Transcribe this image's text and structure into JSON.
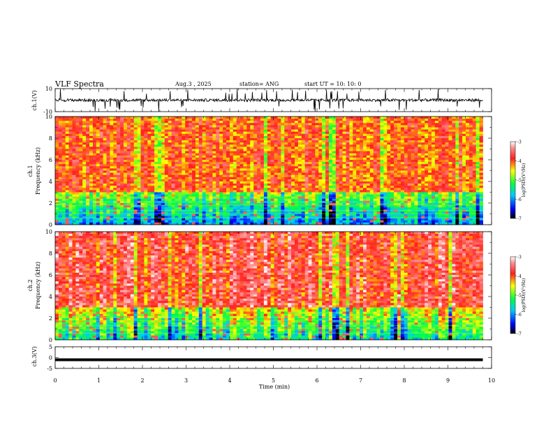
{
  "header": {
    "title": "VLF Spectra",
    "date": "Aug.3  , 2025",
    "station": "station= ANG",
    "start": "start  UT  =   10: 10: 0"
  },
  "chart_data": [
    {
      "type": "line",
      "panel": "ch1-waveform",
      "ylabel": "ch.1(V)",
      "ylim": [
        -10,
        10
      ],
      "yticks": [
        "10",
        "-10"
      ],
      "x_range_min": [
        0,
        9.8
      ],
      "baseline_v": 0,
      "description_values": "noisy signal around 0 V with spikes reaching about ±10 V"
    },
    {
      "type": "heatmap",
      "panel": "ch1-spectrogram",
      "ylabel_top": "ch.1",
      "ylabel": "Frequency  (kHz)",
      "ylim": [
        0,
        10
      ],
      "yticks": [
        "0",
        "2",
        "4",
        "6",
        "8",
        "10"
      ],
      "x_range_min": [
        0,
        9.8
      ],
      "colorbar": {
        "label": "log(PSD)(V²/Hz)",
        "range": [
          -7,
          -3
        ],
        "ticks": [
          "-3",
          "-4",
          "-5",
          "-6",
          "-7"
        ]
      },
      "dominant_level_high_freq": -4,
      "dominant_level_low_freq": -6
    },
    {
      "type": "heatmap",
      "panel": "ch2-spectrogram",
      "ylabel_top": "ch.2",
      "ylabel": "Frequency  (kHz)",
      "ylim": [
        0,
        10
      ],
      "yticks": [
        "0",
        "2",
        "4",
        "6",
        "8",
        "10"
      ],
      "x_range_min": [
        0,
        9.8
      ],
      "colorbar": {
        "label": "log(PSD)(V²/Hz)",
        "range": [
          -7,
          -3
        ],
        "ticks": [
          "-3",
          "-4",
          "-5",
          "-6",
          "-7"
        ]
      },
      "dominant_level_high_freq": -3.7,
      "dominant_level_low_freq": -5.5
    },
    {
      "type": "line",
      "panel": "ch3-waveform",
      "ylabel": "ch.3(V)",
      "ylim": [
        -5,
        5
      ],
      "yticks": [
        "5",
        "0",
        "-5"
      ],
      "x_range_min": [
        0,
        9.8
      ],
      "constant_value_v": -1
    }
  ],
  "xaxis": {
    "label": "Time  (min)",
    "ticks": [
      "0",
      "1",
      "2",
      "3",
      "4",
      "5",
      "6",
      "7",
      "8",
      "9",
      "10"
    ],
    "range": [
      0,
      10
    ]
  },
  "colors": {
    "spec_high": "#ff2020",
    "spec_mid": "#ffff00",
    "spec_green": "#00ff00",
    "spec_cyan": "#00ffff",
    "spec_blue": "#0000ff",
    "spec_low": "#000000"
  }
}
